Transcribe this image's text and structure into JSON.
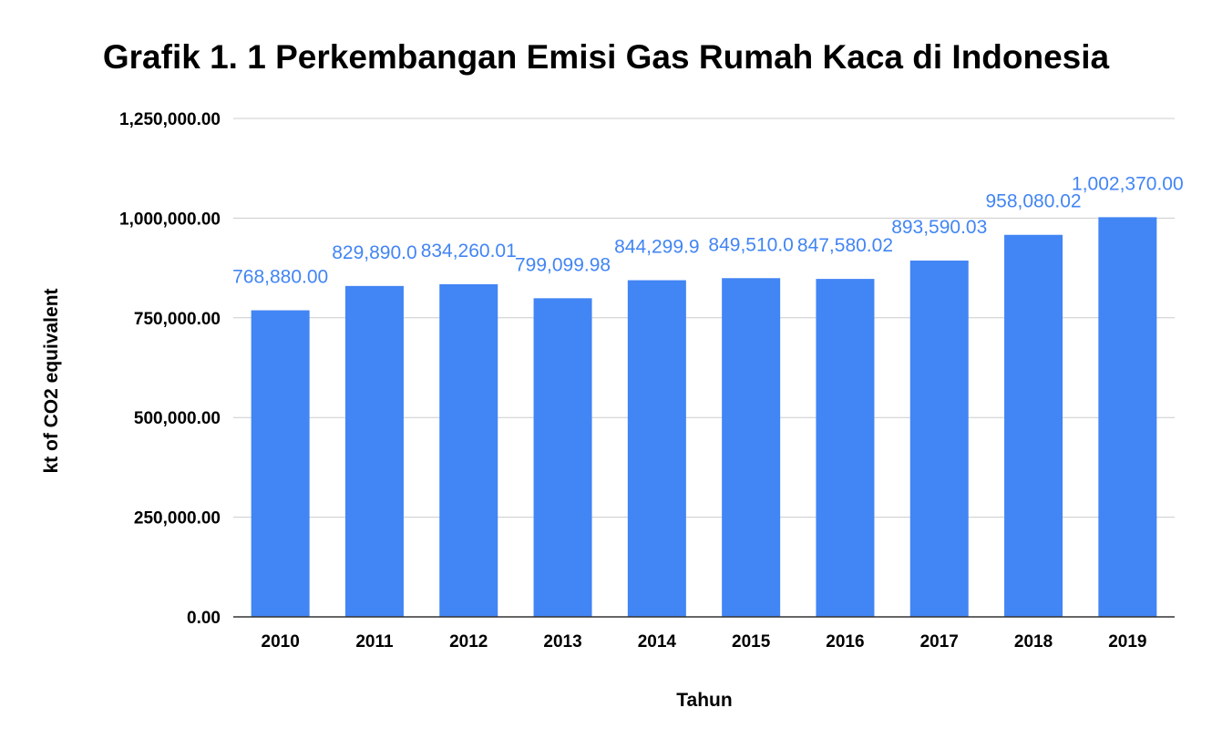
{
  "chart_data": {
    "type": "bar",
    "title": "Grafik 1. 1 Perkembangan Emisi Gas Rumah Kaca di Indonesia",
    "xlabel": "Tahun",
    "ylabel": "kt of CO2 equivalent",
    "categories": [
      "2010",
      "2011",
      "2012",
      "2013",
      "2014",
      "2015",
      "2016",
      "2017",
      "2018",
      "2019"
    ],
    "values": [
      768880.0,
      829890.0,
      834260.01,
      799099.98,
      844299.9,
      849510.0,
      847580.02,
      893590.03,
      958080.02,
      1002370.0
    ],
    "data_labels": [
      "768,880.00",
      "829,890.0",
      "834,260.01",
      "799,099.98",
      "844,299.9",
      "849,510.0",
      "847,580.02",
      "893,590.03",
      "958,080.02",
      "1,002,370.00"
    ],
    "ylim": [
      0,
      1250000
    ],
    "yticks": [
      0,
      250000,
      500000,
      750000,
      1000000,
      1250000
    ],
    "ytick_labels": [
      "0.00",
      "250,000.00",
      "500,000.00",
      "750,000.00",
      "1,000,000.00",
      "1,250,000.00"
    ],
    "grid": true,
    "legend": "none",
    "colors": {
      "bar": "#4285f4",
      "label": "#4285f4",
      "grid": "#cccccc",
      "axis": "#333333"
    }
  }
}
